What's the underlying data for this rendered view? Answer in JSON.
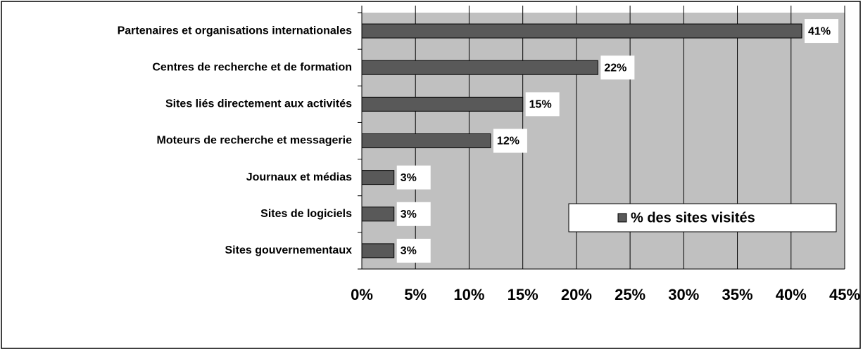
{
  "chart_data": {
    "type": "hbar",
    "categories": [
      "Partenaires et organisations internationales",
      "Centres de recherche et de formation",
      "Sites liés directement aux activités",
      "Moteurs de recherche et messagerie",
      "Journaux et médias",
      "Sites de logiciels",
      "Sites gouvernementaux"
    ],
    "series": [
      {
        "name": "% des sites visités",
        "color": "#595959",
        "values": [
          41,
          22,
          15,
          12,
          3,
          3,
          3
        ],
        "value_labels": [
          "41%",
          "22%",
          "15%",
          "12%",
          "3%",
          "3%",
          "3%"
        ]
      }
    ],
    "xlim": [
      0,
      45
    ],
    "xticks": [
      {
        "value": 0,
        "label": "0%"
      },
      {
        "value": 5,
        "label": "5%"
      },
      {
        "value": 10,
        "label": "10%"
      },
      {
        "value": 15,
        "label": "15%"
      },
      {
        "value": 20,
        "label": "20%"
      },
      {
        "value": 25,
        "label": "25%"
      },
      {
        "value": 30,
        "label": "30%"
      },
      {
        "value": 35,
        "label": "35%"
      },
      {
        "value": 40,
        "label": "40%"
      },
      {
        "value": 45,
        "label": "45%"
      }
    ],
    "grid": true,
    "legend": "right"
  }
}
